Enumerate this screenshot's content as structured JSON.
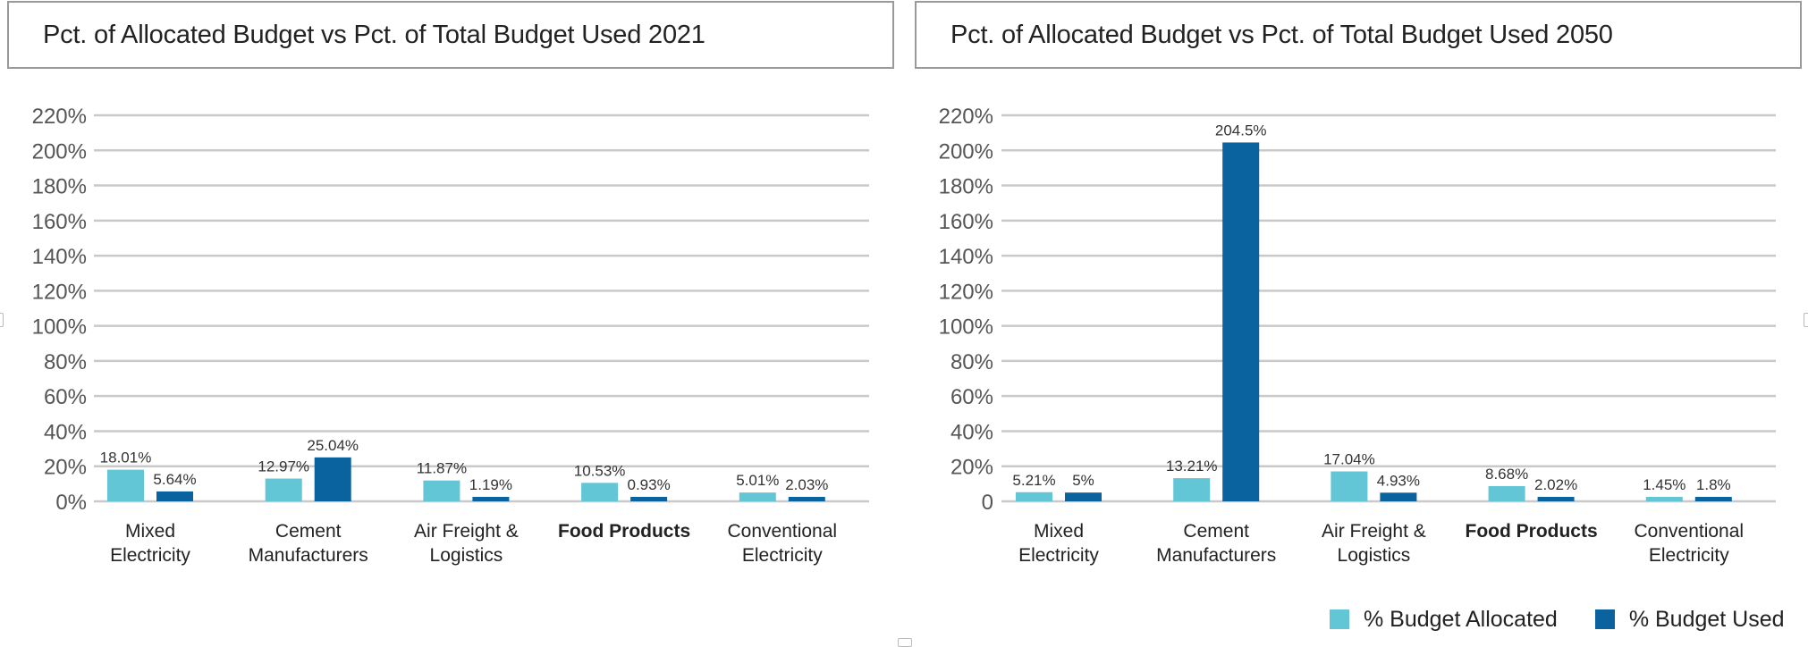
{
  "colors": {
    "allocated": "#62C6D6",
    "used": "#0A639E",
    "grid": "#c9c9c9",
    "axis_text": "#555555",
    "value_text": "#333333"
  },
  "legend": [
    {
      "label": "% Budget Allocated",
      "color": "#62C6D6"
    },
    {
      "label": "% Budget Used",
      "color": "#0A639E"
    }
  ],
  "chart_data": [
    {
      "type": "bar",
      "title": "Pct. of Allocated Budget vs Pct. of Total Budget Used 2021",
      "xlabel": "",
      "ylabel": "",
      "ylim": [
        0,
        220
      ],
      "yticks": [
        0,
        20,
        40,
        60,
        80,
        100,
        120,
        140,
        160,
        180,
        200,
        220
      ],
      "ytick_labels": [
        "0%",
        "20%",
        "40%",
        "60%",
        "80%",
        "100%",
        "120%",
        "140%",
        "160%",
        "180%",
        "200%",
        "220%"
      ],
      "grid": true,
      "categories": [
        {
          "lines": [
            "Mixed",
            "Electricity"
          ],
          "bold": false
        },
        {
          "lines": [
            "Cement",
            "Manufacturers"
          ],
          "bold": false
        },
        {
          "lines": [
            "Air Freight &",
            "Logistics"
          ],
          "bold": false
        },
        {
          "lines": [
            "Food Products"
          ],
          "bold": true
        },
        {
          "lines": [
            "Conventional",
            "Electricity"
          ],
          "bold": false
        }
      ],
      "series": [
        {
          "name": "% Budget Allocated",
          "values": [
            18.01,
            12.97,
            11.87,
            10.53,
            5.01
          ],
          "labels": [
            "18.01%",
            "12.97%",
            "11.87%",
            "10.53%",
            "5.01%"
          ]
        },
        {
          "name": "% Budget Used",
          "values": [
            5.64,
            25.04,
            1.19,
            0.93,
            2.03
          ],
          "labels": [
            "5.64%",
            "25.04%",
            "1.19%",
            "0.93%",
            "2.03%"
          ]
        }
      ],
      "legend_position": "bottom-right"
    },
    {
      "type": "bar",
      "title": "Pct. of Allocated Budget vs Pct. of Total Budget Used 2050",
      "xlabel": "",
      "ylabel": "",
      "ylim": [
        0,
        220
      ],
      "yticks": [
        0,
        20,
        40,
        60,
        80,
        100,
        120,
        140,
        160,
        180,
        200,
        220
      ],
      "ytick_labels": [
        "0",
        "20%",
        "40%",
        "60%",
        "80%",
        "100%",
        "120%",
        "140%",
        "160%",
        "180%",
        "200%",
        "220%"
      ],
      "grid": true,
      "categories": [
        {
          "lines": [
            "Mixed",
            "Electricity"
          ],
          "bold": false
        },
        {
          "lines": [
            "Cement",
            "Manufacturers"
          ],
          "bold": false
        },
        {
          "lines": [
            "Air Freight &",
            "Logistics"
          ],
          "bold": false
        },
        {
          "lines": [
            "Food Products"
          ],
          "bold": true
        },
        {
          "lines": [
            "Conventional",
            "Electricity"
          ],
          "bold": false
        }
      ],
      "series": [
        {
          "name": "% Budget Allocated",
          "values": [
            5.21,
            13.21,
            17.04,
            8.68,
            1.45
          ],
          "labels": [
            "5.21%",
            "13.21%",
            "17.04%",
            "8.68%",
            "1.45%"
          ]
        },
        {
          "name": "% Budget Used",
          "values": [
            5,
            204.5,
            4.93,
            2.02,
            1.8
          ],
          "labels": [
            "5%",
            "204.5%",
            "4.93%",
            "2.02%",
            "1.8%"
          ]
        }
      ],
      "legend_position": "bottom-right"
    }
  ]
}
